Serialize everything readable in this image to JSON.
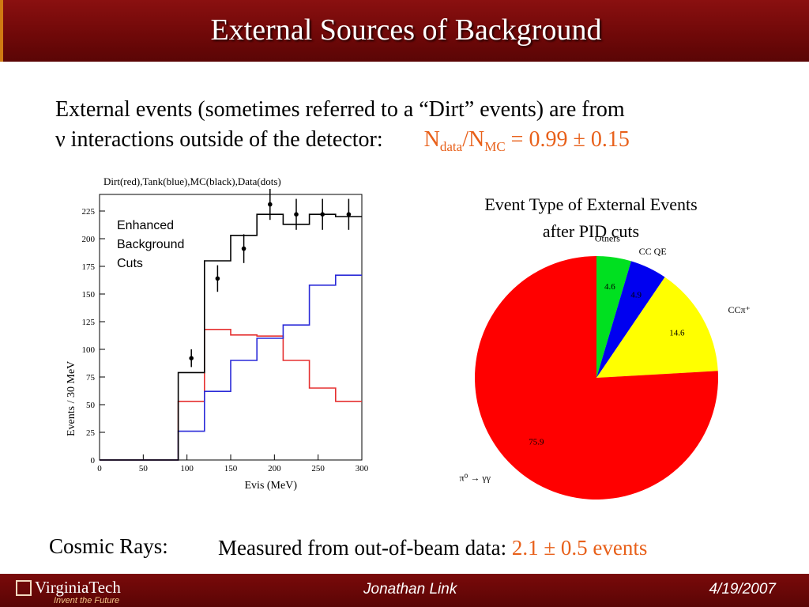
{
  "header": {
    "title": "External Sources of Background"
  },
  "intro": {
    "line1": "External events (sometimes referred to a “Dirt” events) are from",
    "line2": "ν interactions outside of the detector:",
    "ratio_N1": "N",
    "ratio_sub1": "data",
    "ratio_slash": "/N",
    "ratio_sub2": "MC",
    "ratio_value": " = 0.99 ± 0.15"
  },
  "chart_data": [
    {
      "type": "line",
      "title": "Dirt(red),Tank(blue),MC(black),Data(dots)",
      "xlabel": "Evis (MeV)",
      "ylabel": "Events / 30 MeV",
      "xlim": [
        0,
        300
      ],
      "ylim": [
        0,
        240
      ],
      "x_ticks": [
        "0",
        "50",
        "100",
        "150",
        "200",
        "250",
        "300"
      ],
      "y_ticks": [
        "0",
        "25",
        "50",
        "75",
        "100",
        "125",
        "150",
        "175",
        "200",
        "225"
      ],
      "annotation": [
        "Enhanced",
        "Background",
        "Cuts"
      ],
      "bin_edges": [
        0,
        30,
        60,
        90,
        120,
        150,
        180,
        210,
        240,
        270,
        300
      ],
      "series": [
        {
          "name": "Dirt",
          "color": "#e53030",
          "values": [
            0,
            0,
            0,
            53,
            118,
            113,
            112,
            90,
            65,
            53
          ]
        },
        {
          "name": "Tank",
          "color": "#2a2ad8",
          "values": [
            0,
            0,
            0,
            26,
            62,
            90,
            110,
            122,
            158,
            167
          ]
        },
        {
          "name": "MC",
          "color": "#000000",
          "values": [
            0,
            0,
            0,
            79,
            180,
            203,
            222,
            213,
            222,
            220
          ]
        }
      ],
      "data_points": [
        {
          "x": 105,
          "y": 92,
          "err": 8
        },
        {
          "x": 135,
          "y": 164,
          "err": 12
        },
        {
          "x": 165,
          "y": 191,
          "err": 13
        },
        {
          "x": 195,
          "y": 231,
          "err": 14
        },
        {
          "x": 225,
          "y": 222,
          "err": 14
        },
        {
          "x": 255,
          "y": 222,
          "err": 14
        },
        {
          "x": 285,
          "y": 222,
          "err": 14
        }
      ]
    },
    {
      "type": "pie",
      "title_line1": "Event Type of External Events",
      "title_line2": "after PID cuts",
      "slices": [
        {
          "name": "π⁰ → γγ",
          "value": 75.9,
          "label": "75.9",
          "color": "#ff0000"
        },
        {
          "name": "Others",
          "value": 4.6,
          "label": "4.6",
          "color": "#00e020"
        },
        {
          "name": "CC QE",
          "value": 4.9,
          "label": "4.9",
          "color": "#0000f0"
        },
        {
          "name": "CCπ⁺",
          "value": 14.6,
          "label": "14.6",
          "color": "#ffff00"
        }
      ]
    }
  ],
  "cosmic": {
    "label": "Cosmic Rays:",
    "text": "Measured from out-of-beam data: ",
    "value": "2.1 ± 0.5 events"
  },
  "footer": {
    "logo": "VirginiaTech",
    "tagline": "Invent the Future",
    "author": "Jonathan Link",
    "date": "4/19/2007"
  }
}
